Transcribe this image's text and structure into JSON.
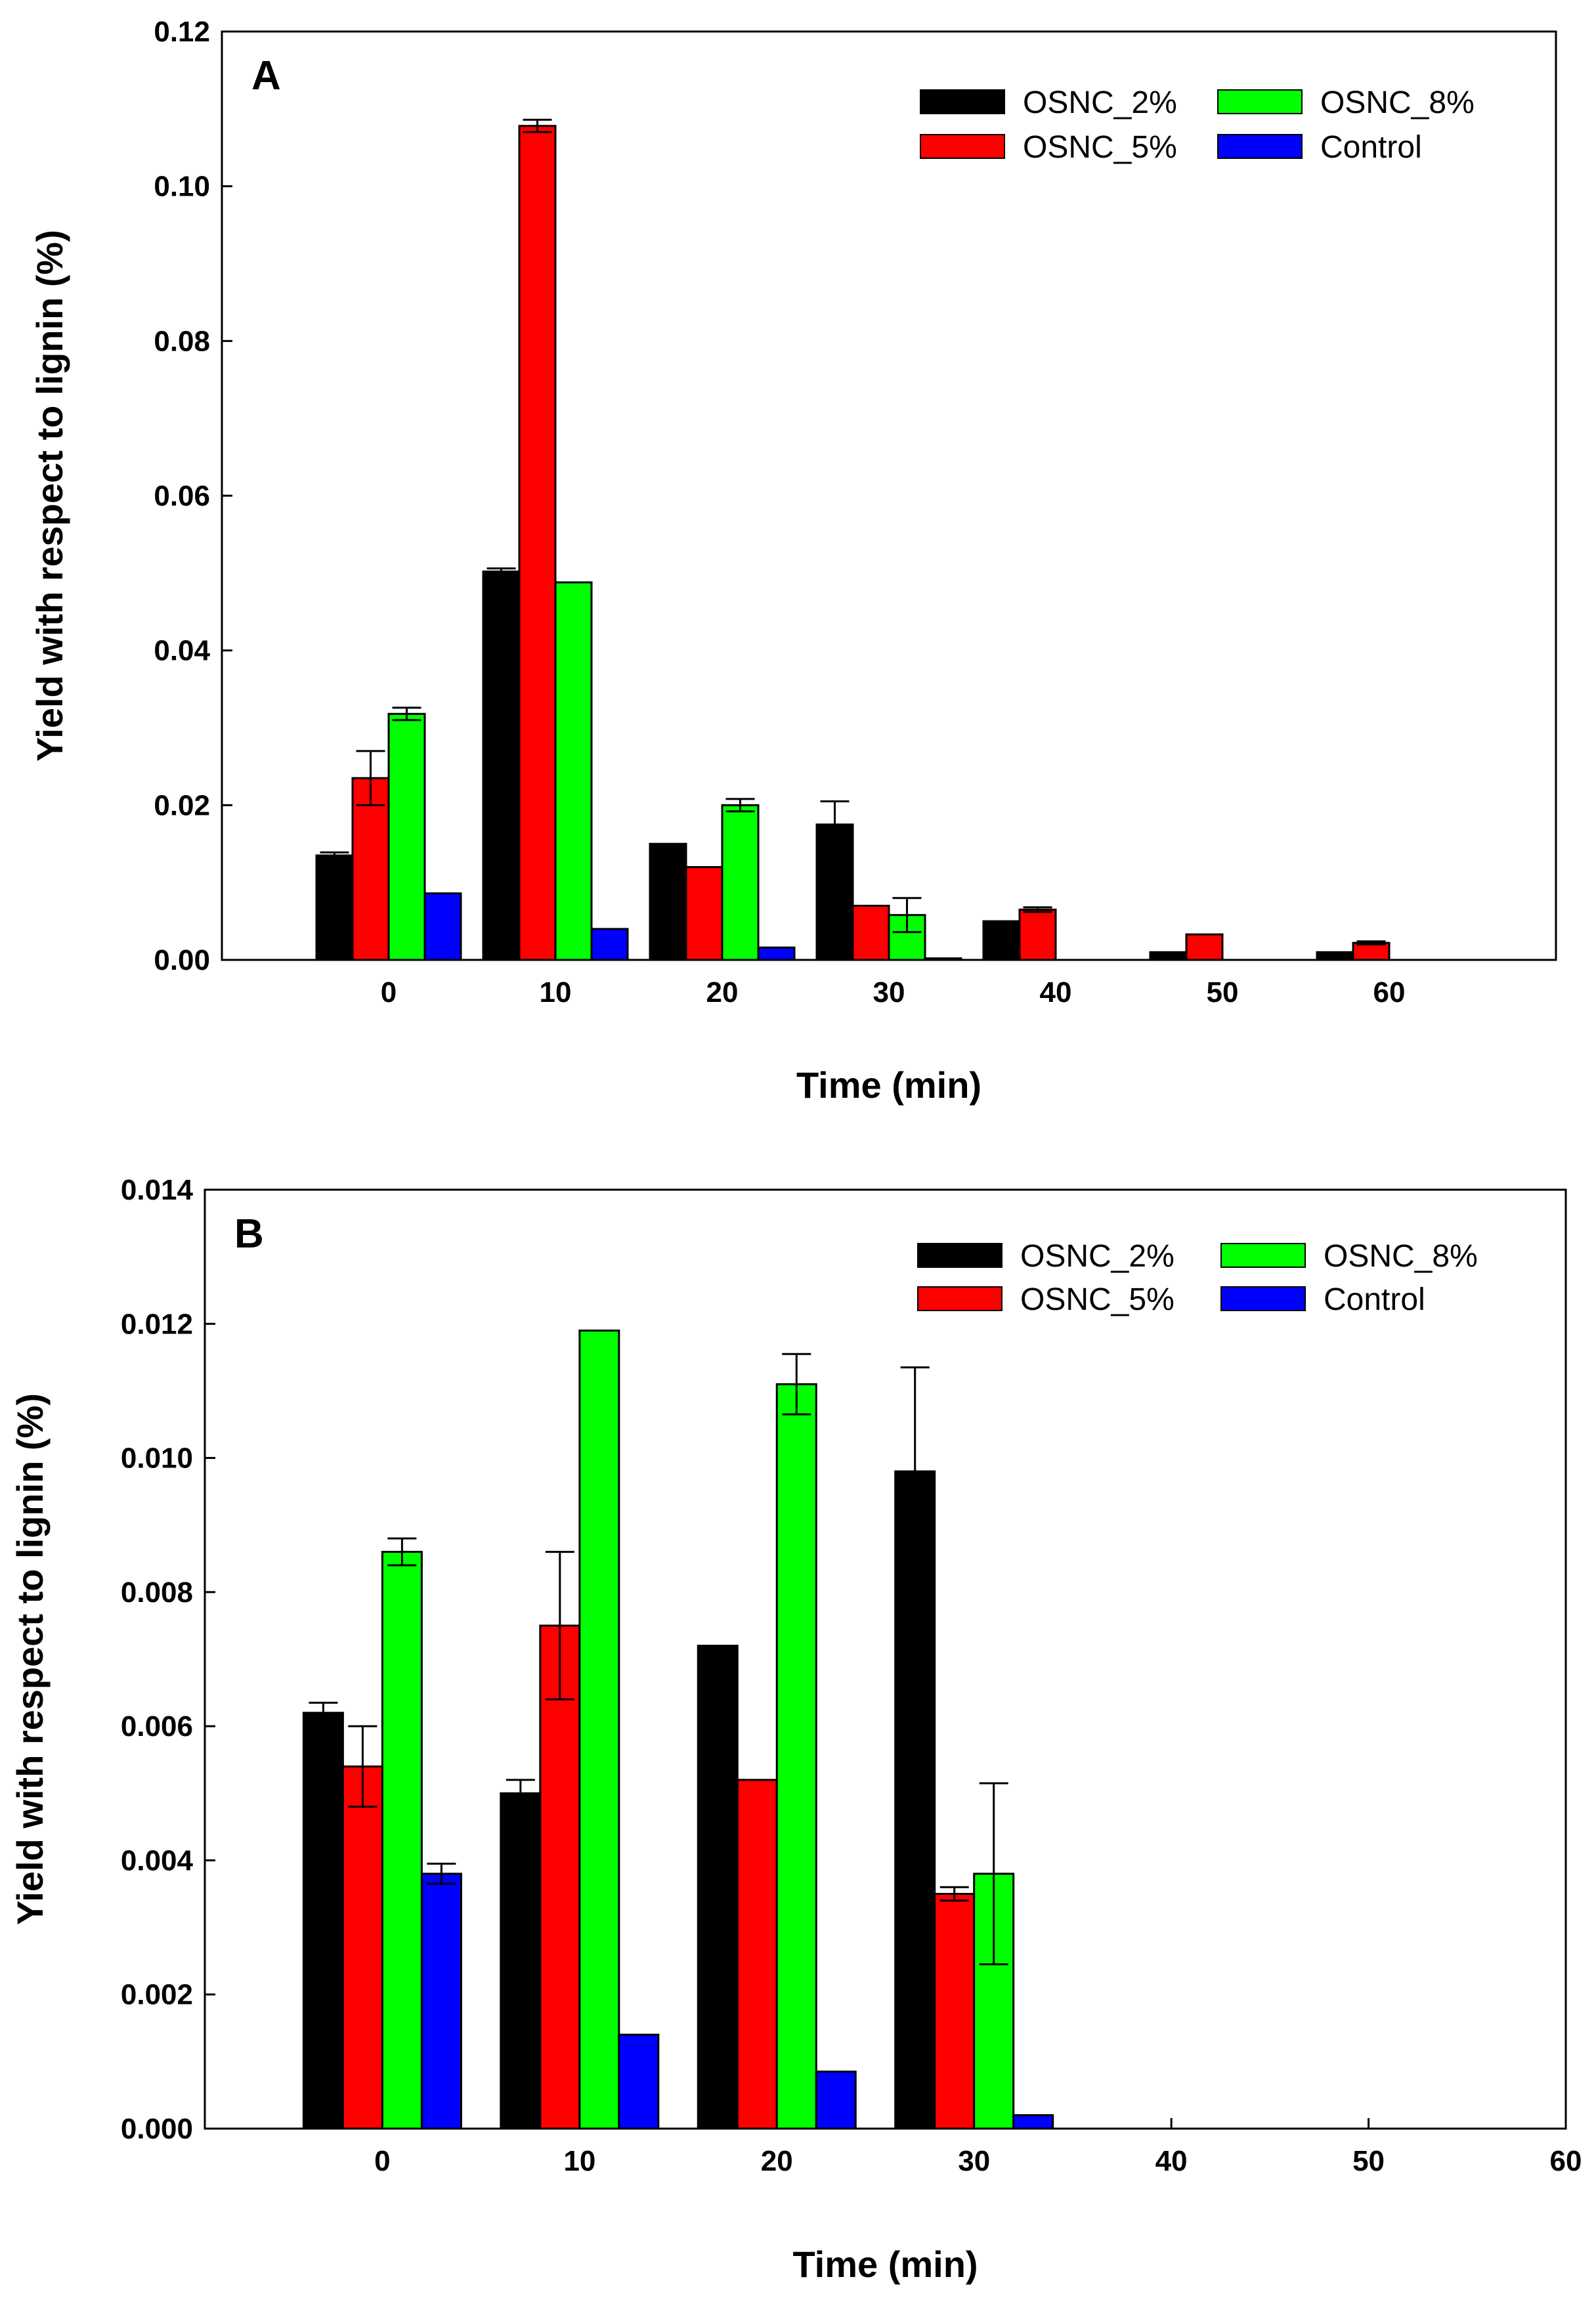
{
  "colors": {
    "OSNC_2%": "#000000",
    "OSNC_5%": "#ff0000",
    "OSNC_8%": "#00ff00",
    "Control": "#0000ff"
  },
  "chart_data": [
    {
      "type": "bar",
      "panel": "A",
      "xlabel": "Time (min)",
      "ylabel": "Yield with respect to lignin (%)",
      "ylim": [
        0,
        0.12
      ],
      "yticks": [
        "0.00",
        "0.02",
        "0.04",
        "0.06",
        "0.08",
        "0.10",
        "0.12"
      ],
      "xlim": [
        -10,
        70
      ],
      "xticks": [
        "0",
        "10",
        "20",
        "30",
        "40",
        "50",
        "60"
      ],
      "categories": [
        0,
        10,
        20,
        30,
        40,
        50,
        60
      ],
      "legend_position": "top-right",
      "series": [
        {
          "name": "OSNC_2%",
          "values": [
            0.0135,
            0.0502,
            0.015,
            0.0175,
            0.005,
            0.001,
            0.001
          ],
          "errors": [
            0.0004,
            0.0004,
            0,
            0.003,
            0,
            0,
            0
          ]
        },
        {
          "name": "OSNC_5%",
          "values": [
            0.0235,
            0.1078,
            0.012,
            0.007,
            0.0065,
            0.0033,
            0.0022
          ],
          "errors": [
            0.0035,
            0.0008,
            0,
            0,
            0.0003,
            0,
            0.0002
          ]
        },
        {
          "name": "OSNC_8%",
          "values": [
            0.0318,
            0.0488,
            0.02,
            0.0058,
            0,
            0,
            0
          ],
          "errors": [
            0.0008,
            0,
            0.0008,
            0.0022,
            0,
            0,
            0
          ]
        },
        {
          "name": "Control",
          "values": [
            0.0086,
            0.004,
            0.0016,
            0.0002,
            0,
            0,
            0
          ],
          "errors": [
            0,
            0,
            0,
            0,
            0,
            0,
            0
          ]
        }
      ]
    },
    {
      "type": "bar",
      "panel": "B",
      "xlabel": "Time (min)",
      "ylabel": "Yield with respect to lignin (%)",
      "ylim": [
        0,
        0.014
      ],
      "yticks": [
        "0.000",
        "0.002",
        "0.004",
        "0.006",
        "0.008",
        "0.010",
        "0.012",
        "0.014"
      ],
      "xlim": [
        -9,
        60
      ],
      "xticks": [
        "0",
        "10",
        "20",
        "30",
        "40",
        "50",
        "60"
      ],
      "categories": [
        0,
        10,
        20,
        30
      ],
      "legend_position": "top-right",
      "series": [
        {
          "name": "OSNC_2%",
          "values": [
            0.0062,
            0.005,
            0.0072,
            0.0098
          ],
          "errors": [
            0.00015,
            0.0002,
            0,
            0.00155
          ]
        },
        {
          "name": "OSNC_5%",
          "values": [
            0.0054,
            0.0075,
            0.0052,
            0.0035
          ],
          "errors": [
            0.0006,
            0.0011,
            0,
            0.0001
          ]
        },
        {
          "name": "OSNC_8%",
          "values": [
            0.0086,
            0.0119,
            0.0111,
            0.0038
          ],
          "errors": [
            0.0002,
            0,
            0.00045,
            0.00135
          ]
        },
        {
          "name": "Control",
          "values": [
            0.0038,
            0.0014,
            0.00085,
            0.0002
          ],
          "errors": [
            0.00015,
            0,
            0,
            0
          ]
        }
      ]
    }
  ]
}
